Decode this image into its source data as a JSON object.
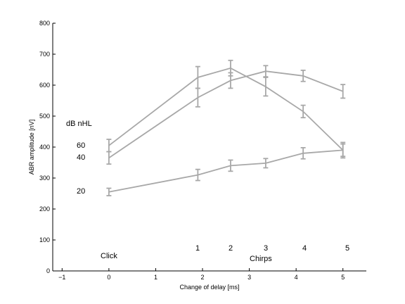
{
  "chart_data": {
    "type": "line",
    "xlabel": "Change of delay [ms]",
    "ylabel": "ABR amplitude [nV]",
    "xlim": [
      -1.2,
      5.5
    ],
    "ylim": [
      0,
      800
    ],
    "xticks": [
      -1,
      0,
      1,
      2,
      3,
      4,
      5
    ],
    "xtick_labels": [
      "−1",
      "0",
      "1",
      "2",
      "3",
      "4",
      "5"
    ],
    "yticks": [
      0,
      100,
      200,
      300,
      400,
      500,
      600,
      700,
      800
    ],
    "ytick_labels": [
      "0",
      "100",
      "200",
      "300",
      "400",
      "500",
      "600",
      "700",
      "800"
    ],
    "grid": false,
    "series_color": "#a8a8a8",
    "series": [
      {
        "name": "60",
        "x": [
          0,
          1.9,
          2.6,
          3.35,
          4.15,
          5.0
        ],
        "y": [
          405,
          625,
          655,
          595,
          515,
          390
        ],
        "err": [
          20,
          35,
          25,
          30,
          20,
          25
        ]
      },
      {
        "name": "40",
        "x": [
          0,
          1.9,
          2.6,
          3.35,
          4.15,
          5.0
        ],
        "y": [
          365,
          560,
          615,
          645,
          630,
          580
        ],
        "err": [
          20,
          30,
          25,
          18,
          18,
          22
        ]
      },
      {
        "name": "20",
        "x": [
          0,
          1.9,
          2.6,
          3.35,
          4.15,
          5.0
        ],
        "y": [
          255,
          310,
          340,
          348,
          380,
          390
        ],
        "err": [
          12,
          18,
          18,
          15,
          18,
          20
        ]
      }
    ],
    "annotations": {
      "level_header": "dB nHL",
      "click": "Click",
      "chirps": "Chirps",
      "chirp_numbers": [
        "1",
        "2",
        "3",
        "4",
        "5"
      ]
    }
  }
}
